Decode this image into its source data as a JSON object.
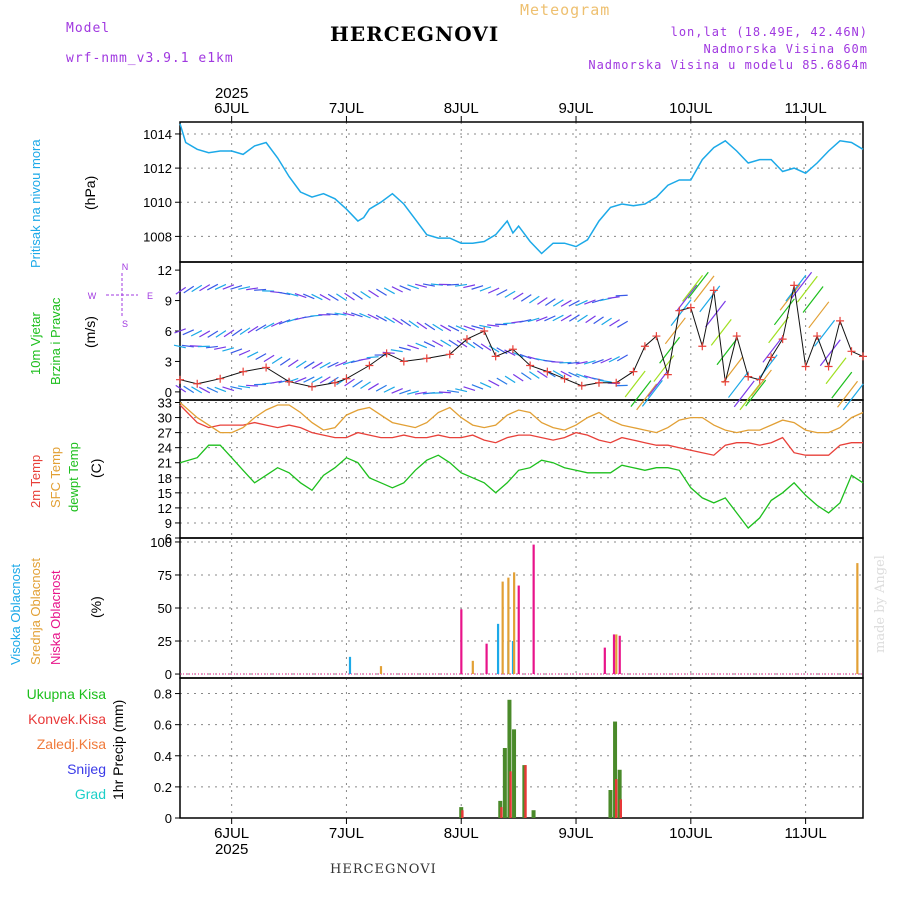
{
  "header": {
    "model_label": "Model",
    "model_name": "wrf-nmm_v3.9.1  e1km",
    "meteogram": "Meteogram",
    "station": "HERCEGNOVI",
    "coords": "lon,lat (18.49E, 42.46N)",
    "elevation": "Nadmorska Visina 60m",
    "model_elevation": "Nadmorska Visina u modelu 85.6864m",
    "year": "2025",
    "footer_station": "HERCEGNOVI",
    "credit": "made by Angel"
  },
  "x_axis": {
    "day_labels": [
      "6JUL",
      "7JUL",
      "8JUL",
      "9JUL",
      "10JUL",
      "11JUL"
    ],
    "day_positions": [
      6,
      7,
      8,
      9,
      10,
      11
    ],
    "range": [
      5.55,
      11.5
    ]
  },
  "colors": {
    "pressure": "#1ca9e8",
    "temp2m": "#e8413a",
    "sfc": "#e2a035",
    "dewpt": "#1dbf1d",
    "total_precip": "#4a8a2a",
    "convective": "#e83838",
    "stratiform": "#f07a3a",
    "snow": "#3a3ae8",
    "grad": "#1ccfc8",
    "purple": "#a038e0"
  },
  "panels": {
    "pressure": {
      "labels": [
        "Pritisak na nivou mora"
      ],
      "unit": "(hPa)",
      "ticks": [
        "1008",
        "1010",
        "1012",
        "1014"
      ]
    },
    "wind": {
      "labels": [
        "10m Vjetar",
        "Brzina i Pravac"
      ],
      "unit": "(m/s)",
      "ticks": [
        "0",
        "3",
        "6",
        "9",
        "12"
      ],
      "compass": {
        "n": "N",
        "s": "S",
        "e": "E",
        "w": "W"
      }
    },
    "temp": {
      "labels": [
        "2m Temp",
        "SFC Temp",
        "dewpt Temp"
      ],
      "unit": "(C)",
      "ticks": [
        "6",
        "9",
        "12",
        "15",
        "18",
        "21",
        "24",
        "27",
        "30",
        "33"
      ]
    },
    "cloud": {
      "labels": [
        "Visoka Oblacnost",
        "Srednja Oblacnost",
        "Niska Oblacnost"
      ],
      "unit": "(%)",
      "ticks": [
        "0",
        "25",
        "50",
        "75",
        "100"
      ]
    },
    "precip": {
      "legend": [
        "Ukupna Kisa",
        "Konvek.Kisa",
        "Zaledj.Kisa",
        "Snijeg",
        "Grad"
      ],
      "ylabel": "1hr Precip (mm)",
      "ticks": [
        "0",
        "0.2",
        "0.4",
        "0.6",
        "0.8"
      ]
    }
  },
  "chart_data": [
    {
      "type": "line",
      "ylabel": "Pritisak na nivou mora (hPa)",
      "ylim": [
        1006.5,
        1014.7
      ],
      "x": [
        5.55,
        5.6,
        5.7,
        5.8,
        5.9,
        6.0,
        6.1,
        6.2,
        6.3,
        6.4,
        6.5,
        6.6,
        6.7,
        6.8,
        6.9,
        7.0,
        7.1,
        7.15,
        7.2,
        7.3,
        7.4,
        7.5,
        7.6,
        7.7,
        7.8,
        7.9,
        8.0,
        8.1,
        8.2,
        8.3,
        8.4,
        8.45,
        8.5,
        8.6,
        8.7,
        8.8,
        8.9,
        9.0,
        9.1,
        9.2,
        9.3,
        9.4,
        9.5,
        9.6,
        9.7,
        9.8,
        9.9,
        10.0,
        10.1,
        10.2,
        10.3,
        10.4,
        10.5,
        10.6,
        10.7,
        10.8,
        10.9,
        11.0,
        11.1,
        11.2,
        11.3,
        11.4,
        11.5
      ],
      "y": [
        1014.6,
        1013.5,
        1013.1,
        1012.9,
        1013.0,
        1013.0,
        1012.8,
        1013.3,
        1013.5,
        1012.6,
        1011.5,
        1010.6,
        1010.3,
        1010.5,
        1010.2,
        1009.6,
        1008.9,
        1009.1,
        1009.6,
        1010.0,
        1010.5,
        1009.9,
        1009.0,
        1008.1,
        1007.9,
        1007.9,
        1007.6,
        1007.6,
        1007.7,
        1008.1,
        1008.9,
        1008.2,
        1008.6,
        1007.7,
        1007.0,
        1007.6,
        1007.6,
        1007.4,
        1007.8,
        1008.9,
        1009.7,
        1009.9,
        1009.8,
        1009.9,
        1010.3,
        1011.0,
        1011.3,
        1011.3,
        1012.5,
        1013.2,
        1013.6,
        1013.0,
        1012.3,
        1012.5,
        1012.5,
        1011.8,
        1012.0,
        1011.7,
        1012.3,
        1013.0,
        1013.6,
        1013.5,
        1013.1
      ],
      "grid": true
    },
    {
      "type": "scatter",
      "ylabel": "10m Vjetar Brzina i Pravac (m/s)",
      "ylim": [
        -0.8,
        12.8
      ],
      "series": [
        {
          "x": [
            5.55,
            5.7,
            5.9,
            6.1,
            6.3,
            6.5,
            6.7,
            6.9,
            7.0,
            7.2,
            7.35,
            7.5,
            7.7,
            7.9,
            8.05,
            8.2,
            8.3,
            8.45,
            8.6,
            8.75,
            8.9,
            9.05,
            9.2,
            9.35,
            9.5,
            9.6,
            9.7,
            9.8,
            9.9,
            10.0,
            10.1,
            10.2,
            10.3,
            10.4,
            10.5,
            10.6,
            10.7,
            10.8,
            10.9,
            11.0,
            11.1,
            11.2,
            11.3,
            11.4,
            11.5
          ],
          "y": [
            1.2,
            0.8,
            1.3,
            2.0,
            2.4,
            1.0,
            0.5,
            0.9,
            1.3,
            2.6,
            3.8,
            3.0,
            3.3,
            3.7,
            5.2,
            6.0,
            3.5,
            4.2,
            2.6,
            2.0,
            1.3,
            0.6,
            0.9,
            0.9,
            2.0,
            4.5,
            5.5,
            1.7,
            8.0,
            8.3,
            4.5,
            10.0,
            1.0,
            5.5,
            1.5,
            1.2,
            3.4,
            5.2,
            10.5,
            2.5,
            5.5,
            2.5,
            7.0,
            4.0,
            3.5
          ]
        }
      ]
    },
    {
      "type": "line",
      "ylabel": "Temp (C)",
      "ylim": [
        6,
        33.5
      ],
      "x": [
        5.55,
        5.7,
        5.8,
        5.9,
        6.0,
        6.1,
        6.2,
        6.3,
        6.4,
        6.5,
        6.6,
        6.7,
        6.8,
        6.9,
        7.0,
        7.1,
        7.2,
        7.3,
        7.4,
        7.5,
        7.6,
        7.7,
        7.8,
        7.9,
        8.0,
        8.1,
        8.2,
        8.3,
        8.4,
        8.5,
        8.6,
        8.7,
        8.8,
        8.9,
        9.0,
        9.1,
        9.2,
        9.3,
        9.4,
        9.5,
        9.6,
        9.7,
        9.8,
        9.9,
        10.0,
        10.1,
        10.2,
        10.3,
        10.4,
        10.5,
        10.6,
        10.7,
        10.8,
        10.9,
        11.0,
        11.1,
        11.2,
        11.3,
        11.4,
        11.5
      ],
      "series": [
        {
          "name": "2m Temp",
          "values": [
            32.5,
            29,
            28,
            28.5,
            28.5,
            28.5,
            29,
            28.5,
            28,
            28.5,
            28,
            27,
            26.5,
            26,
            26,
            27,
            26.5,
            26,
            26,
            26.5,
            26,
            26,
            26.5,
            26,
            26,
            26.5,
            25.5,
            25,
            26,
            26.5,
            26.5,
            26,
            25.5,
            26,
            27,
            26.5,
            25.5,
            25,
            26,
            25.5,
            25,
            24.5,
            24.5,
            24,
            23.5,
            23,
            22.5,
            24.5,
            25,
            25,
            24.5,
            25,
            26,
            23,
            22.5,
            22.5,
            22.5,
            24.5,
            25,
            25
          ]
        },
        {
          "name": "SFC Temp",
          "values": [
            33,
            30,
            28.5,
            27,
            27,
            28,
            30,
            31.5,
            32.5,
            32.5,
            31,
            29,
            27.5,
            28,
            30.5,
            31.5,
            32,
            30.5,
            29,
            28.5,
            28,
            29,
            31,
            32,
            30,
            28.5,
            28,
            28.5,
            30.5,
            31.5,
            31,
            29,
            28,
            27.5,
            28.5,
            30,
            31,
            29.5,
            28.5,
            28,
            27.5,
            27,
            28,
            29.5,
            30,
            30,
            28.5,
            27.5,
            27,
            27.5,
            27.5,
            28.5,
            29.5,
            29,
            27.5,
            27,
            27,
            28,
            30,
            31
          ]
        },
        {
          "name": "dewpt Temp",
          "values": [
            21,
            22,
            24.5,
            24.5,
            22,
            19.5,
            17,
            18.5,
            20,
            19,
            17,
            15.5,
            18.5,
            20,
            22,
            21,
            18,
            17,
            16,
            17,
            19.5,
            21.5,
            22.5,
            21,
            19,
            18,
            17,
            15,
            17,
            19.5,
            20,
            21.5,
            21,
            20,
            19.5,
            19,
            19,
            19,
            20.5,
            20,
            19.5,
            20,
            20,
            19.5,
            16,
            14,
            13,
            14,
            11,
            8,
            10,
            13.5,
            15,
            17,
            14.5,
            12.5,
            11,
            13,
            18.5,
            17
          ]
        }
      ]
    },
    {
      "type": "bar",
      "ylabel": "Oblacnost (%)",
      "ylim": [
        -3,
        103
      ],
      "series": [
        {
          "name": "Visoka Oblacnost",
          "x": [
            7.03,
            8.32,
            8.41,
            8.45
          ],
          "values": [
            13,
            38,
            25,
            25
          ]
        },
        {
          "name": "Srednja Oblacnost",
          "x": [
            7.3,
            8.1,
            8.36,
            8.41,
            8.46,
            9.35,
            11.45
          ],
          "values": [
            6,
            10,
            70,
            73,
            77,
            30,
            84
          ]
        },
        {
          "name": "Niska Oblacnost",
          "x": [
            8.0,
            8.22,
            8.5,
            8.63,
            9.25,
            9.33,
            9.38
          ],
          "values": [
            49,
            23,
            67,
            98,
            20,
            30,
            29
          ]
        }
      ]
    },
    {
      "type": "bar",
      "ylabel": "1hr Precip (mm)",
      "ylim": [
        0,
        0.9
      ],
      "series": [
        {
          "name": "Ukupna Kisa",
          "x": [
            8.0,
            8.34,
            8.38,
            8.42,
            8.46,
            8.55,
            8.63,
            9.3,
            9.34,
            9.38
          ],
          "values": [
            0.07,
            0.11,
            0.45,
            0.76,
            0.57,
            0.34,
            0.05,
            0.18,
            0.62,
            0.31
          ]
        },
        {
          "name": "Konvek.Kisa",
          "x": [
            8.01,
            8.35,
            8.43,
            8.56,
            9.35,
            9.39
          ],
          "values": [
            0.05,
            0.07,
            0.3,
            0.34,
            0.25,
            0.12
          ]
        }
      ]
    }
  ]
}
